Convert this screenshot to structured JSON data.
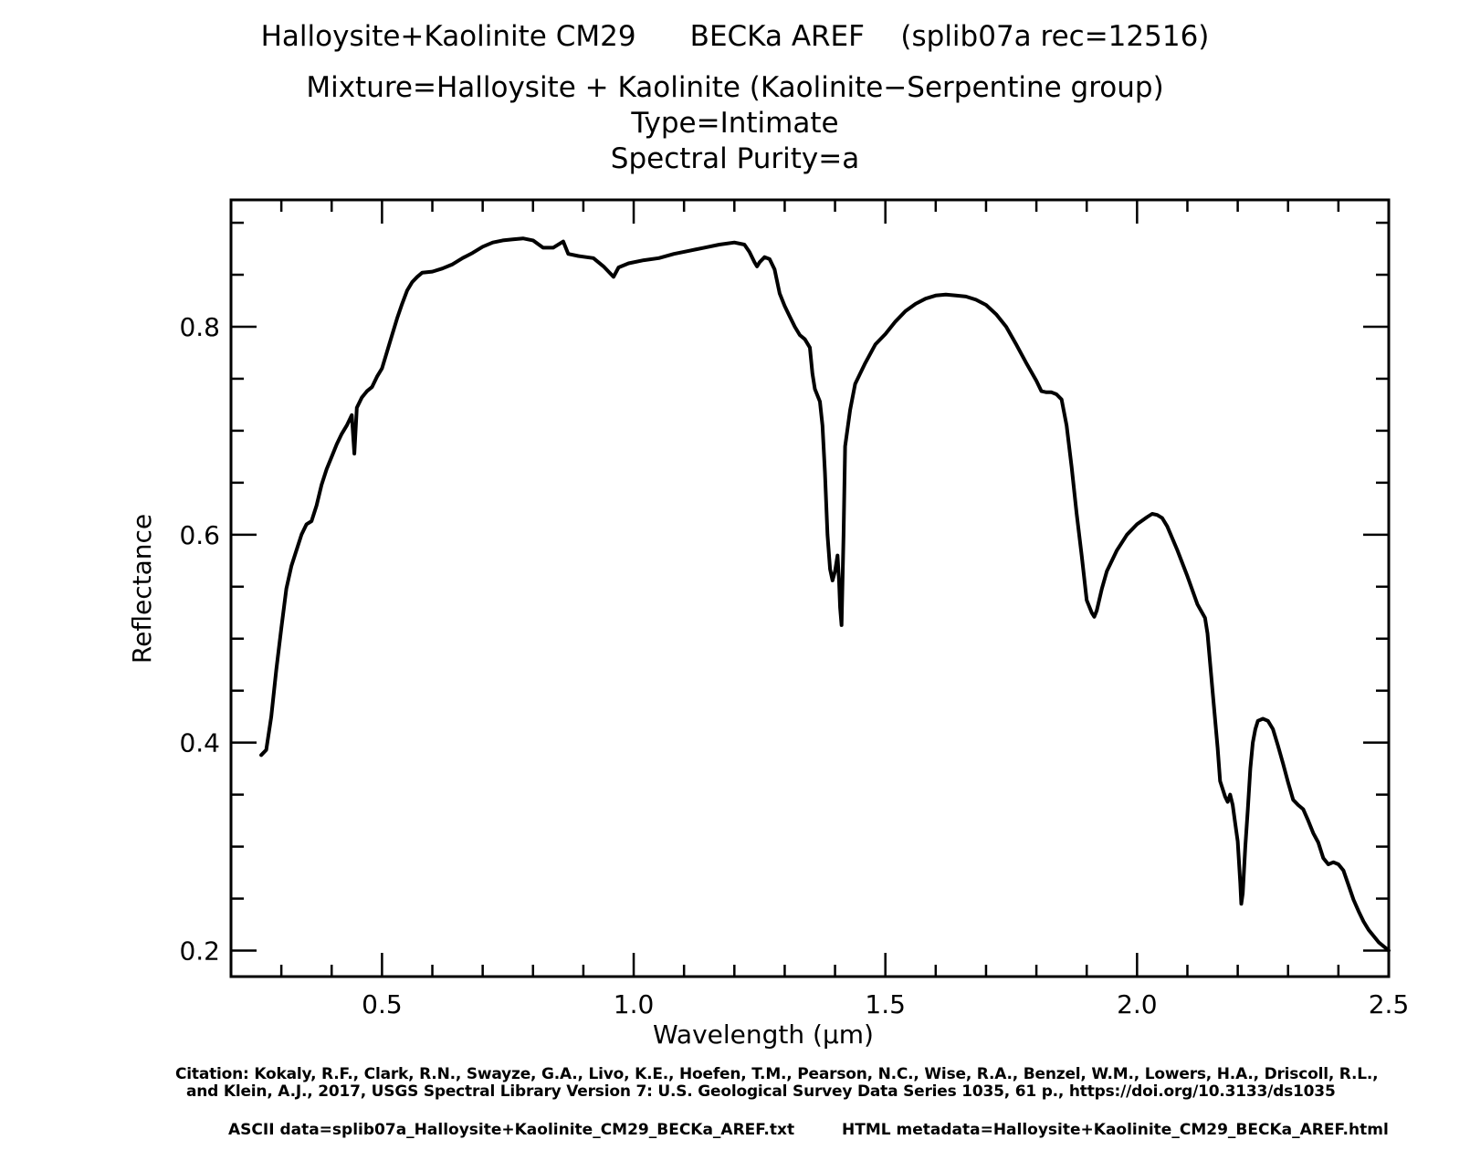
{
  "titles": {
    "line1": "Halloysite+Kaolinite CM29      BECKa AREF    (splib07a rec=12516)",
    "line2": "Mixture=Halloysite + Kaolinite (Kaolinite−Serpentine group)",
    "line3": "Type=Intimate",
    "line4": "Spectral Purity=a"
  },
  "footer": {
    "citation_line1": "Citation: Kokaly, R.F., Clark, R.N., Swayze, G.A., Livo, K.E., Hoefen, T.M., Pearson, N.C., Wise, R.A., Benzel, W.M., Lowers, H.A., Driscoll, R.L.,",
    "citation_line2": "and Klein, A.J., 2017, USGS Spectral Library Version 7: U.S. Geological Survey Data Series 1035, 61 p., https://doi.org/10.3133/ds1035",
    "ascii": "ASCII data=splib07a_Halloysite+Kaolinite_CM29_BECKa_AREF.txt",
    "html": "HTML metadata=Halloysite+Kaolinite_CM29_BECKa_AREF.html"
  },
  "chart_data": {
    "type": "line",
    "xlabel": "Wavelength (μm)",
    "ylabel": "Reflectance",
    "xlim": [
      0.2,
      2.5
    ],
    "ylim": [
      0.175,
      0.922
    ],
    "x_ticks": [
      0.5,
      1.0,
      1.5,
      2.0,
      2.5
    ],
    "x_tick_labels": [
      "0.5",
      "1.0",
      "1.5",
      "2.0",
      "2.5"
    ],
    "y_ticks": [
      0.2,
      0.4,
      0.6,
      0.8
    ],
    "y_tick_labels": [
      "0.2",
      "0.4",
      "0.6",
      "0.8"
    ],
    "grid": false,
    "color": "#000000",
    "series": [
      {
        "points": [
          [
            0.26,
            0.388
          ],
          [
            0.27,
            0.393
          ],
          [
            0.28,
            0.425
          ],
          [
            0.29,
            0.47
          ],
          [
            0.3,
            0.51
          ],
          [
            0.31,
            0.548
          ],
          [
            0.32,
            0.57
          ],
          [
            0.33,
            0.585
          ],
          [
            0.34,
            0.6
          ],
          [
            0.35,
            0.61
          ],
          [
            0.36,
            0.613
          ],
          [
            0.37,
            0.628
          ],
          [
            0.38,
            0.648
          ],
          [
            0.39,
            0.663
          ],
          [
            0.4,
            0.675
          ],
          [
            0.41,
            0.687
          ],
          [
            0.42,
            0.697
          ],
          [
            0.43,
            0.705
          ],
          [
            0.44,
            0.715
          ],
          [
            0.445,
            0.678
          ],
          [
            0.45,
            0.722
          ],
          [
            0.46,
            0.732
          ],
          [
            0.47,
            0.738
          ],
          [
            0.48,
            0.742
          ],
          [
            0.49,
            0.752
          ],
          [
            0.5,
            0.76
          ],
          [
            0.51,
            0.776
          ],
          [
            0.52,
            0.792
          ],
          [
            0.53,
            0.808
          ],
          [
            0.54,
            0.822
          ],
          [
            0.55,
            0.835
          ],
          [
            0.56,
            0.843
          ],
          [
            0.57,
            0.848
          ],
          [
            0.58,
            0.852
          ],
          [
            0.6,
            0.853
          ],
          [
            0.62,
            0.856
          ],
          [
            0.64,
            0.86
          ],
          [
            0.66,
            0.866
          ],
          [
            0.68,
            0.871
          ],
          [
            0.7,
            0.877
          ],
          [
            0.72,
            0.881
          ],
          [
            0.74,
            0.883
          ],
          [
            0.76,
            0.884
          ],
          [
            0.78,
            0.885
          ],
          [
            0.8,
            0.883
          ],
          [
            0.82,
            0.876
          ],
          [
            0.84,
            0.876
          ],
          [
            0.86,
            0.882
          ],
          [
            0.87,
            0.87
          ],
          [
            0.89,
            0.868
          ],
          [
            0.92,
            0.866
          ],
          [
            0.94,
            0.858
          ],
          [
            0.95,
            0.853
          ],
          [
            0.96,
            0.848
          ],
          [
            0.97,
            0.857
          ],
          [
            0.99,
            0.861
          ],
          [
            1.02,
            0.864
          ],
          [
            1.05,
            0.866
          ],
          [
            1.08,
            0.87
          ],
          [
            1.11,
            0.873
          ],
          [
            1.14,
            0.876
          ],
          [
            1.17,
            0.879
          ],
          [
            1.2,
            0.881
          ],
          [
            1.22,
            0.879
          ],
          [
            1.23,
            0.872
          ],
          [
            1.24,
            0.862
          ],
          [
            1.245,
            0.858
          ],
          [
            1.25,
            0.862
          ],
          [
            1.26,
            0.867
          ],
          [
            1.27,
            0.865
          ],
          [
            1.28,
            0.855
          ],
          [
            1.29,
            0.832
          ],
          [
            1.3,
            0.82
          ],
          [
            1.31,
            0.81
          ],
          [
            1.32,
            0.8
          ],
          [
            1.33,
            0.792
          ],
          [
            1.34,
            0.788
          ],
          [
            1.35,
            0.78
          ],
          [
            1.355,
            0.755
          ],
          [
            1.36,
            0.74
          ],
          [
            1.37,
            0.728
          ],
          [
            1.375,
            0.705
          ],
          [
            1.38,
            0.66
          ],
          [
            1.385,
            0.6
          ],
          [
            1.39,
            0.567
          ],
          [
            1.395,
            0.556
          ],
          [
            1.4,
            0.565
          ],
          [
            1.405,
            0.58
          ],
          [
            1.408,
            0.555
          ],
          [
            1.41,
            0.53
          ],
          [
            1.413,
            0.513
          ],
          [
            1.417,
            0.6
          ],
          [
            1.42,
            0.685
          ],
          [
            1.43,
            0.72
          ],
          [
            1.44,
            0.745
          ],
          [
            1.46,
            0.765
          ],
          [
            1.48,
            0.783
          ],
          [
            1.5,
            0.793
          ],
          [
            1.52,
            0.805
          ],
          [
            1.54,
            0.815
          ],
          [
            1.56,
            0.822
          ],
          [
            1.58,
            0.827
          ],
          [
            1.6,
            0.83
          ],
          [
            1.62,
            0.831
          ],
          [
            1.64,
            0.83
          ],
          [
            1.66,
            0.829
          ],
          [
            1.68,
            0.826
          ],
          [
            1.7,
            0.821
          ],
          [
            1.72,
            0.812
          ],
          [
            1.74,
            0.8
          ],
          [
            1.76,
            0.783
          ],
          [
            1.78,
            0.765
          ],
          [
            1.8,
            0.748
          ],
          [
            1.81,
            0.738
          ],
          [
            1.82,
            0.737
          ],
          [
            1.83,
            0.737
          ],
          [
            1.84,
            0.735
          ],
          [
            1.85,
            0.73
          ],
          [
            1.86,
            0.705
          ],
          [
            1.87,
            0.665
          ],
          [
            1.88,
            0.62
          ],
          [
            1.89,
            0.58
          ],
          [
            1.9,
            0.537
          ],
          [
            1.91,
            0.525
          ],
          [
            1.915,
            0.521
          ],
          [
            1.92,
            0.527
          ],
          [
            1.93,
            0.548
          ],
          [
            1.94,
            0.565
          ],
          [
            1.96,
            0.585
          ],
          [
            1.98,
            0.6
          ],
          [
            2.0,
            0.61
          ],
          [
            2.02,
            0.617
          ],
          [
            2.03,
            0.62
          ],
          [
            2.04,
            0.619
          ],
          [
            2.05,
            0.616
          ],
          [
            2.06,
            0.608
          ],
          [
            2.08,
            0.585
          ],
          [
            2.1,
            0.56
          ],
          [
            2.12,
            0.533
          ],
          [
            2.135,
            0.52
          ],
          [
            2.14,
            0.505
          ],
          [
            2.15,
            0.45
          ],
          [
            2.16,
            0.395
          ],
          [
            2.165,
            0.363
          ],
          [
            2.175,
            0.348
          ],
          [
            2.18,
            0.343
          ],
          [
            2.185,
            0.35
          ],
          [
            2.19,
            0.34
          ],
          [
            2.195,
            0.322
          ],
          [
            2.2,
            0.305
          ],
          [
            2.205,
            0.265
          ],
          [
            2.207,
            0.245
          ],
          [
            2.21,
            0.255
          ],
          [
            2.215,
            0.3
          ],
          [
            2.22,
            0.335
          ],
          [
            2.225,
            0.375
          ],
          [
            2.23,
            0.4
          ],
          [
            2.235,
            0.413
          ],
          [
            2.24,
            0.421
          ],
          [
            2.25,
            0.423
          ],
          [
            2.26,
            0.421
          ],
          [
            2.27,
            0.413
          ],
          [
            2.28,
            0.397
          ],
          [
            2.29,
            0.38
          ],
          [
            2.3,
            0.362
          ],
          [
            2.31,
            0.345
          ],
          [
            2.32,
            0.34
          ],
          [
            2.33,
            0.336
          ],
          [
            2.34,
            0.325
          ],
          [
            2.35,
            0.313
          ],
          [
            2.36,
            0.304
          ],
          [
            2.37,
            0.289
          ],
          [
            2.38,
            0.283
          ],
          [
            2.39,
            0.285
          ],
          [
            2.4,
            0.283
          ],
          [
            2.41,
            0.277
          ],
          [
            2.42,
            0.263
          ],
          [
            2.43,
            0.249
          ],
          [
            2.44,
            0.238
          ],
          [
            2.45,
            0.228
          ],
          [
            2.46,
            0.22
          ],
          [
            2.48,
            0.208
          ],
          [
            2.5,
            0.2
          ]
        ]
      }
    ]
  }
}
